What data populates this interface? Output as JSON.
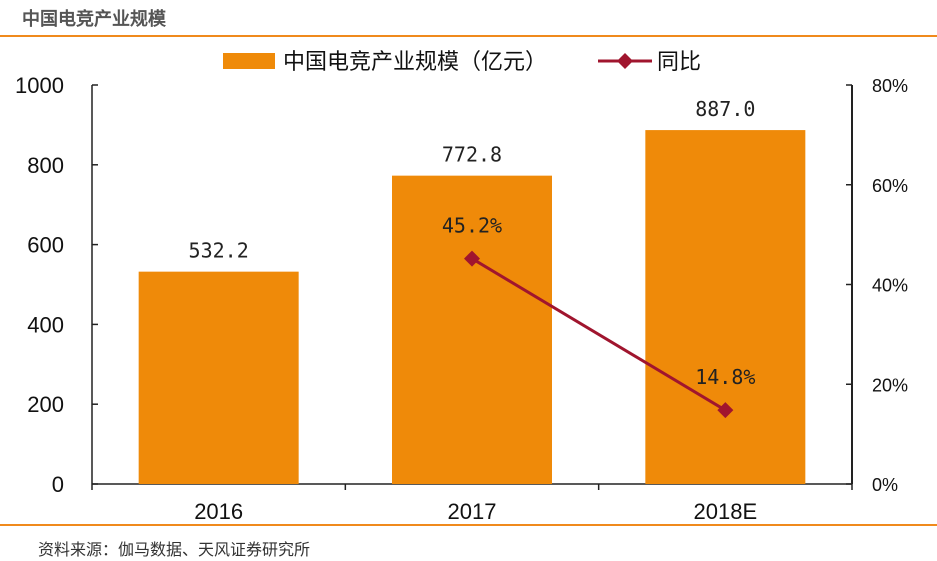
{
  "page": {
    "title": "中国电竞产业规模",
    "source": "资料来源：伽马数据、天风证券研究所"
  },
  "colors": {
    "accent": "#f08a1c",
    "bar": "#ef8a09",
    "line": "#a0152e"
  },
  "chart_data": {
    "type": "bar",
    "categories": [
      "2016",
      "2017",
      "2018E"
    ],
    "series": [
      {
        "name": "中国电竞产业规模（亿元）",
        "type": "bar",
        "axis": "left",
        "values": [
          532.2,
          772.8,
          887.0
        ],
        "labels": [
          "532.2",
          "772.8",
          "887.0"
        ]
      },
      {
        "name": "同比",
        "type": "line",
        "axis": "right",
        "values": [
          null,
          45.2,
          14.8
        ],
        "labels": [
          "",
          "45.2%",
          "14.8%"
        ]
      }
    ],
    "y_left": {
      "range": [
        0,
        1000
      ],
      "ticks": [
        "0",
        "200",
        "400",
        "600",
        "800",
        "1000"
      ]
    },
    "y_right": {
      "range": [
        0,
        80
      ],
      "ticks": [
        "0%",
        "20%",
        "40%",
        "60%",
        "80%"
      ]
    },
    "legend": "top",
    "grid": false
  }
}
